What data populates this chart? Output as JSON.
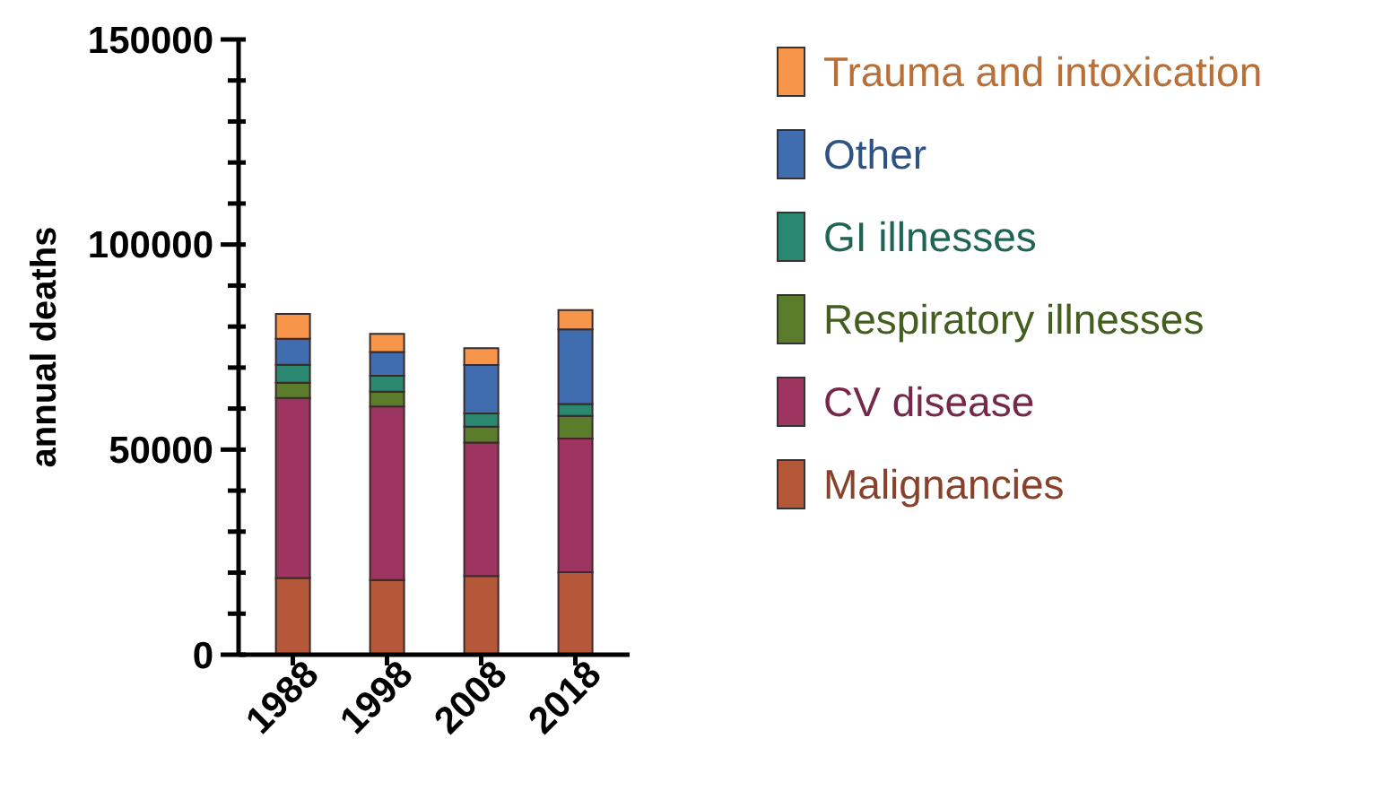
{
  "chart_data": {
    "type": "bar",
    "stacked": true,
    "ylabel": "annual deaths",
    "categories": [
      "1988",
      "1998",
      "2008",
      "2018"
    ],
    "series": [
      {
        "name": "Malignancies",
        "color": "#b5583a",
        "values": [
          18700,
          18200,
          19200,
          20100
        ]
      },
      {
        "name": "CV disease",
        "color": "#9e3560",
        "values": [
          43900,
          42300,
          32500,
          32600
        ]
      },
      {
        "name": "Respiratory illnesses",
        "color": "#5b7d2b",
        "values": [
          3700,
          3600,
          3900,
          5500
        ]
      },
      {
        "name": "GI illnesses",
        "color": "#2a8770",
        "values": [
          4400,
          3900,
          3200,
          2900
        ]
      },
      {
        "name": "Other",
        "color": "#3f6db0",
        "values": [
          6300,
          5800,
          11800,
          18200
        ]
      },
      {
        "name": "Trauma and intoxication",
        "color": "#f7964a",
        "values": [
          6100,
          4400,
          4100,
          4700
        ]
      }
    ],
    "ylim": [
      0,
      150000
    ],
    "yticks": [
      0,
      {
        "value": 10000,
        "label": null
      },
      {
        "value": 20000,
        "label": null
      },
      {
        "value": 30000,
        "label": null
      },
      {
        "value": 40000,
        "label": null
      },
      50000,
      {
        "value": 60000,
        "label": null
      },
      {
        "value": 70000,
        "label": null
      },
      {
        "value": 80000,
        "label": null
      },
      {
        "value": 90000,
        "label": null
      },
      100000,
      {
        "value": 110000,
        "label": null
      },
      {
        "value": 120000,
        "label": null
      },
      {
        "value": 130000,
        "label": null
      },
      {
        "value": 140000,
        "label": null
      },
      150000
    ],
    "grid": false,
    "legend": "right"
  }
}
